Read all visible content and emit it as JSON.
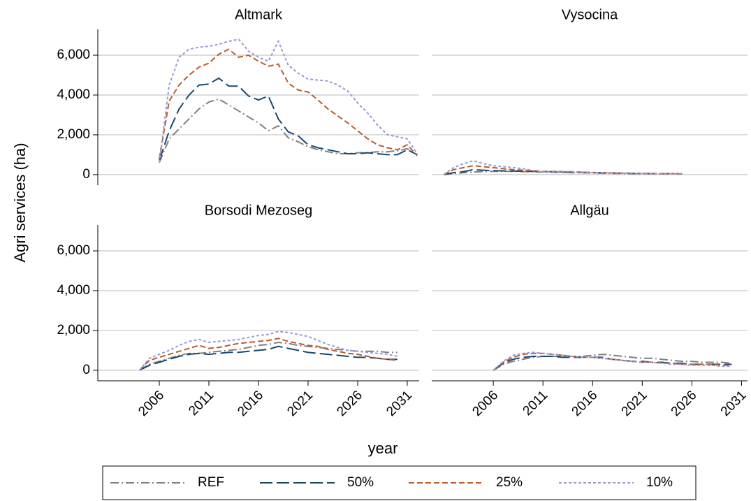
{
  "y_label": "Agri services (ha)",
  "x_label": "year",
  "chart_data": [
    {
      "type": "line",
      "title": "Altmark",
      "ylim": [
        -530,
        7300
      ],
      "xlim": [
        1999.8,
        2032.2
      ],
      "yticks": [
        0,
        {
          "value": 2000,
          "label": "2,000"
        },
        {
          "value": 4000,
          "label": "4,000"
        },
        {
          "value": 6000,
          "label": "6,000"
        }
      ],
      "grid": true,
      "x": [
        2006,
        2007,
        2008,
        2009,
        2010,
        2011,
        2012,
        2013,
        2014,
        2015,
        2016,
        2017,
        2018,
        2019,
        2020,
        2021,
        2022,
        2023,
        2024,
        2025,
        2026,
        2027,
        2028,
        2029,
        2030,
        2031,
        2032
      ],
      "series": [
        {
          "name": "REF",
          "color": "#808080",
          "dash": "dash-dot",
          "values": [
            600,
            1800,
            2300,
            2800,
            3300,
            3650,
            3800,
            3500,
            3200,
            2900,
            2600,
            2200,
            2450,
            1850,
            1650,
            1400,
            1250,
            1150,
            1050,
            1050,
            1100,
            1100,
            1150,
            1150,
            1200,
            1300,
            1000
          ]
        },
        {
          "name": "50%",
          "color": "#1a476f",
          "dash": "long-dash",
          "values": [
            700,
            2200,
            3300,
            4000,
            4500,
            4550,
            4850,
            4450,
            4450,
            3950,
            3750,
            3950,
            2800,
            2150,
            1950,
            1500,
            1350,
            1250,
            1150,
            1050,
            1050,
            1100,
            1050,
            1000,
            1000,
            1250,
            1000
          ]
        },
        {
          "name": "25%",
          "color": "#b85c2c",
          "dash": "dash",
          "values": [
            800,
            3700,
            4500,
            5000,
            5400,
            5600,
            6050,
            6300,
            5900,
            6000,
            5700,
            5450,
            5550,
            4600,
            4250,
            4150,
            3750,
            3300,
            2950,
            2600,
            2200,
            1800,
            1500,
            1350,
            1250,
            1500,
            950
          ]
        },
        {
          "name": "10%",
          "color": "#9a9ad8",
          "dash": "short-dash",
          "values": [
            600,
            4500,
            5900,
            6300,
            6400,
            6450,
            6550,
            6700,
            6800,
            6200,
            5900,
            5700,
            6700,
            5500,
            5100,
            4800,
            4750,
            4700,
            4500,
            4200,
            3600,
            3100,
            2500,
            2000,
            1900,
            1800,
            1050
          ]
        }
      ]
    },
    {
      "type": "line",
      "title": "Vysocina",
      "ylim": [
        -530,
        7300
      ],
      "xlim": [
        1999.8,
        2031.6
      ],
      "yticks": [
        0,
        2000,
        4000,
        6000
      ],
      "grid": true,
      "x": [
        2001,
        2002,
        2003,
        2004,
        2005,
        2006,
        2007,
        2008,
        2009,
        2010,
        2011,
        2012,
        2013,
        2014,
        2015,
        2016,
        2017,
        2018,
        2019,
        2020,
        2021,
        2022,
        2023,
        2024,
        2025
      ],
      "series": [
        {
          "name": "REF",
          "color": "#808080",
          "dash": "dash-dot",
          "values": [
            0,
            60,
            100,
            130,
            150,
            160,
            160,
            160,
            150,
            140,
            130,
            120,
            110,
            100,
            90,
            80,
            70,
            60,
            60,
            50,
            50,
            50,
            40,
            40,
            40
          ]
        },
        {
          "name": "50%",
          "color": "#1a476f",
          "dash": "long-dash",
          "values": [
            0,
            100,
            150,
            250,
            220,
            200,
            190,
            180,
            170,
            160,
            150,
            140,
            130,
            120,
            110,
            100,
            90,
            80,
            70,
            60,
            60,
            50,
            50,
            50,
            40
          ]
        },
        {
          "name": "25%",
          "color": "#b85c2c",
          "dash": "dash",
          "values": [
            0,
            250,
            350,
            450,
            400,
            350,
            300,
            250,
            220,
            200,
            170,
            160,
            150,
            140,
            120,
            110,
            100,
            90,
            80,
            70,
            60,
            60,
            50,
            50,
            50
          ]
        },
        {
          "name": "10%",
          "color": "#9a9ad8",
          "dash": "short-dash",
          "values": [
            0,
            350,
            550,
            700,
            550,
            450,
            400,
            350,
            300,
            200,
            150,
            150,
            150,
            150,
            120,
            100,
            100,
            80,
            70,
            70,
            60,
            60,
            60,
            50,
            50
          ]
        }
      ]
    },
    {
      "type": "line",
      "title": "Borsodi Mezoseg",
      "ylim": [
        -530,
        7300
      ],
      "xlim": [
        1999.8,
        2032.2
      ],
      "yticks": [
        0,
        {
          "value": 2000,
          "label": "2,000"
        },
        {
          "value": 4000,
          "label": "4,000"
        },
        {
          "value": 6000,
          "label": "6,000"
        }
      ],
      "grid": true,
      "xticks": [
        2006,
        2011,
        2016,
        2021,
        2026,
        2031
      ],
      "x": [
        2004,
        2005,
        2006,
        2007,
        2008,
        2009,
        2010,
        2011,
        2012,
        2013,
        2014,
        2015,
        2016,
        2017,
        2018,
        2019,
        2020,
        2021,
        2022,
        2023,
        2024,
        2025,
        2026,
        2027,
        2028,
        2029,
        2030
      ],
      "series": [
        {
          "name": "REF",
          "color": "#808080",
          "dash": "dash-dot",
          "values": [
            0,
            300,
            450,
            600,
            750,
            850,
            850,
            900,
            950,
            1000,
            1050,
            1150,
            1250,
            1300,
            1400,
            1350,
            1250,
            1200,
            1150,
            1100,
            1050,
            1000,
            950,
            950,
            950,
            900,
            900
          ]
        },
        {
          "name": "50%",
          "color": "#1a476f",
          "dash": "long-dash",
          "values": [
            0,
            250,
            400,
            550,
            700,
            800,
            850,
            800,
            850,
            900,
            900,
            950,
            1000,
            1050,
            1200,
            1100,
            1000,
            900,
            850,
            800,
            750,
            700,
            650,
            650,
            600,
            550,
            550
          ]
        },
        {
          "name": "25%",
          "color": "#b85c2c",
          "dash": "dash",
          "values": [
            0,
            500,
            650,
            800,
            950,
            1100,
            1250,
            1100,
            1150,
            1250,
            1350,
            1400,
            1450,
            1500,
            1600,
            1450,
            1350,
            1250,
            1200,
            1050,
            950,
            850,
            800,
            700,
            600,
            550,
            500
          ]
        },
        {
          "name": "10%",
          "color": "#9a9ad8",
          "dash": "short-dash",
          "values": [
            0,
            600,
            800,
            1000,
            1250,
            1450,
            1550,
            1400,
            1450,
            1500,
            1550,
            1650,
            1750,
            1800,
            1950,
            1900,
            1800,
            1700,
            1500,
            1300,
            1150,
            1000,
            950,
            900,
            850,
            800,
            700
          ]
        }
      ]
    },
    {
      "type": "line",
      "title": "Allgäu",
      "ylim": [
        -530,
        7300
      ],
      "xlim": [
        1999.8,
        2031.6
      ],
      "yticks": [
        0,
        2000,
        4000,
        6000
      ],
      "grid": true,
      "xticks": [
        2006,
        2011,
        2016,
        2021,
        2026,
        2031
      ],
      "x": [
        2006,
        2007,
        2008,
        2009,
        2010,
        2011,
        2012,
        2013,
        2014,
        2015,
        2016,
        2017,
        2018,
        2019,
        2020,
        2021,
        2022,
        2023,
        2024,
        2025,
        2026,
        2027,
        2028,
        2029,
        2030
      ],
      "series": [
        {
          "name": "REF",
          "color": "#808080",
          "dash": "dash-dot",
          "values": [
            0,
            300,
            450,
            550,
            650,
            700,
            700,
            700,
            700,
            700,
            750,
            800,
            750,
            700,
            650,
            600,
            600,
            550,
            500,
            450,
            450,
            400,
            400,
            400,
            350
          ]
        },
        {
          "name": "50%",
          "color": "#1a476f",
          "dash": "long-dash",
          "values": [
            0,
            350,
            550,
            650,
            700,
            700,
            700,
            650,
            650,
            650,
            650,
            650,
            550,
            500,
            450,
            450,
            400,
            400,
            350,
            350,
            300,
            300,
            300,
            300,
            300
          ]
        },
        {
          "name": "25%",
          "color": "#b85c2c",
          "dash": "dash",
          "values": [
            0,
            400,
            650,
            800,
            850,
            850,
            800,
            750,
            700,
            650,
            650,
            600,
            550,
            500,
            450,
            400,
            400,
            350,
            350,
            300,
            300,
            300,
            300,
            250,
            250
          ]
        },
        {
          "name": "10%",
          "color": "#9a9ad8",
          "dash": "short-dash",
          "values": [
            0,
            450,
            750,
            850,
            900,
            850,
            800,
            750,
            700,
            650,
            650,
            600,
            550,
            500,
            450,
            400,
            400,
            350,
            300,
            300,
            250,
            250,
            250,
            200,
            200
          ]
        }
      ]
    }
  ]
}
